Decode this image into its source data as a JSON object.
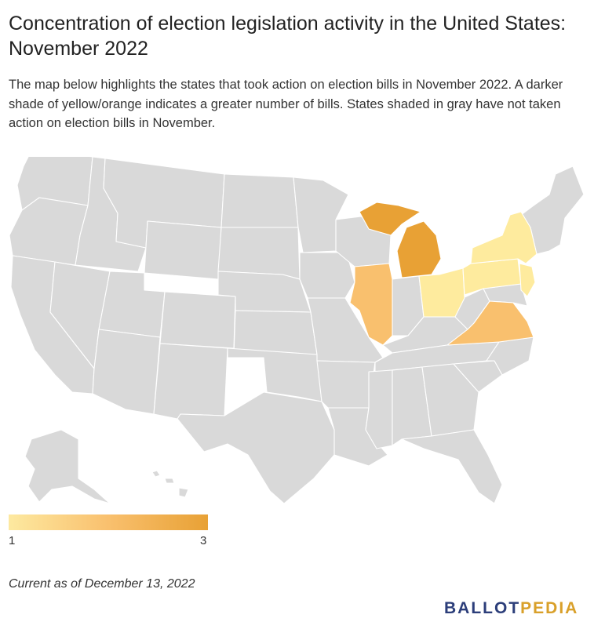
{
  "title": "Concentration of election legislation activity in the United States: November 2022",
  "description": "The map below highlights the states that took action on election bills in November 2022. A darker shade of yellow/orange indicates a greater number of bills. States shaded in gray have not taken action on election bills in November.",
  "legend": {
    "min_label": "1",
    "max_label": "3",
    "min_color": "#fde9a0",
    "mid_color": "#f9c06e",
    "max_color": "#e8a135"
  },
  "colors": {
    "no_action": "#d9d9d9",
    "one_bill": "#feeb9e",
    "two_bills": "#f9c06e",
    "three_bills": "#e8a135"
  },
  "states_with_activity": [
    {
      "state": "Michigan",
      "level": 3
    },
    {
      "state": "Illinois",
      "level": 2
    },
    {
      "state": "Virginia",
      "level": 2
    },
    {
      "state": "New York",
      "level": 1
    },
    {
      "state": "Pennsylvania",
      "level": 1
    },
    {
      "state": "Ohio",
      "level": 1
    },
    {
      "state": "New Jersey",
      "level": 1
    }
  ],
  "footnote": "Current as of December 13, 2022",
  "logo": {
    "part1": "BALLOT",
    "part2": "PEDIA"
  }
}
